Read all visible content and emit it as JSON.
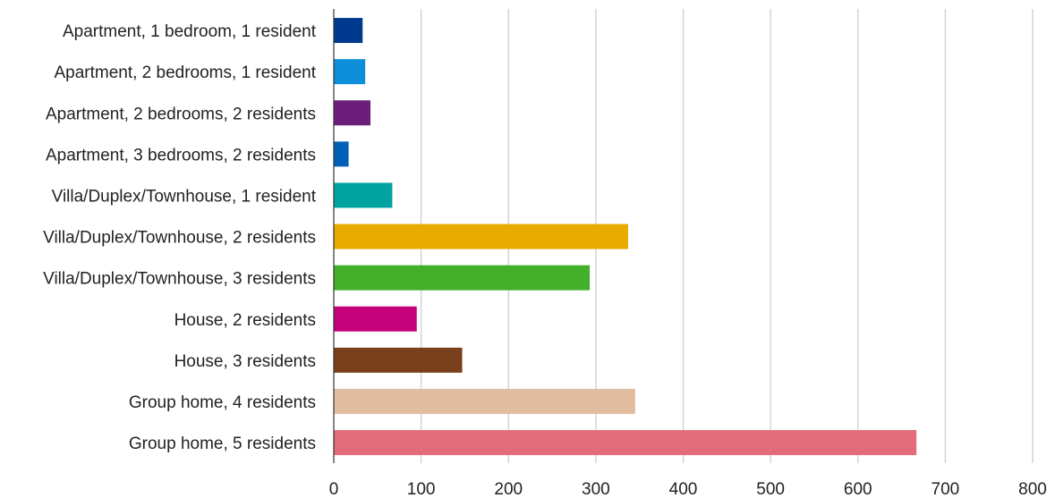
{
  "chart_data": {
    "type": "bar",
    "orientation": "horizontal",
    "title": "",
    "xlabel": "",
    "ylabel": "",
    "xlim": [
      0,
      800
    ],
    "x_ticks": [
      "0",
      "100",
      "200",
      "300",
      "400",
      "500",
      "600",
      "700",
      "800"
    ],
    "grid": "vertical",
    "legend": "none",
    "categories": [
      "Apartment, 1 bedroom, 1 resident",
      "Apartment, 2 bedrooms, 1 resident",
      "Apartment, 2 bedrooms, 2 residents",
      "Apartment, 3 bedrooms, 2 residents",
      "Villa/Duplex/Townhouse, 1 resident",
      "Villa/Duplex/Townhouse, 2 residents",
      "Villa/Duplex/Townhouse, 3 residents",
      "House, 2 residents",
      "House, 3 residents",
      "Group home, 4 residents",
      "Group home, 5 residents"
    ],
    "values": [
      33,
      36,
      42,
      17,
      67,
      337,
      293,
      95,
      147,
      345,
      667
    ],
    "colors": [
      "#003a8f",
      "#0e8fdc",
      "#6b1f7b",
      "#0060b8",
      "#00a3a0",
      "#eaab00",
      "#43b02a",
      "#c4007b",
      "#7a3f1b",
      "#e2bc9f",
      "#e36b7a"
    ]
  }
}
